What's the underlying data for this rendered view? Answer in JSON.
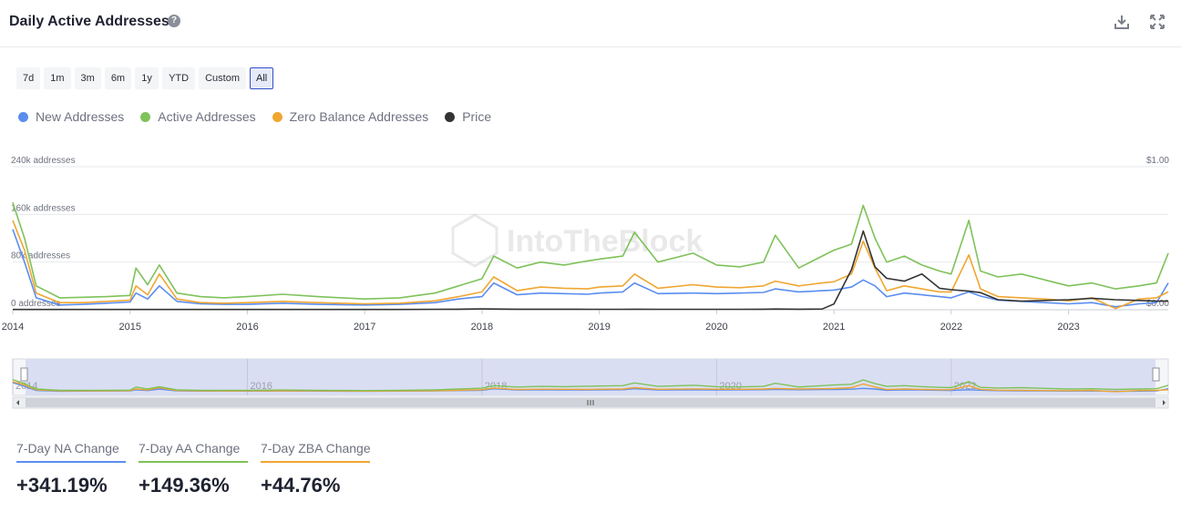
{
  "header": {
    "title": "Daily Active Addresses",
    "help_icon": "question-circle-icon",
    "download_icon": "download-icon",
    "expand_icon": "expand-icon"
  },
  "range_buttons": [
    "7d",
    "1m",
    "3m",
    "6m",
    "1y",
    "YTD",
    "Custom",
    "All"
  ],
  "range_selected": "All",
  "legend": [
    {
      "label": "New Addresses",
      "color": "#5b8def"
    },
    {
      "label": "Active Addresses",
      "color": "#7ec25a"
    },
    {
      "label": "Zero Balance Addresses",
      "color": "#f0a631"
    },
    {
      "label": "Price",
      "color": "#333333"
    }
  ],
  "watermark": "IntoTheBlock",
  "kpis": [
    {
      "label": "7-Day NA Change",
      "value": "+341.19%",
      "color": "#5b8def"
    },
    {
      "label": "7-Day AA Change",
      "value": "+149.36%",
      "color": "#7ec25a"
    },
    {
      "label": "7-Day ZBA Change",
      "value": "+44.76%",
      "color": "#f0a631"
    }
  ],
  "chart_data": {
    "type": "line",
    "x": [
      2014.0,
      2014.1,
      2014.2,
      2014.4,
      2014.6,
      2014.8,
      2015.0,
      2015.05,
      2015.15,
      2015.25,
      2015.4,
      2015.6,
      2015.8,
      2016.0,
      2016.3,
      2016.6,
      2017.0,
      2017.3,
      2017.6,
      2017.8,
      2018.0,
      2018.1,
      2018.3,
      2018.5,
      2018.7,
      2018.9,
      2019.0,
      2019.2,
      2019.3,
      2019.5,
      2019.8,
      2020.0,
      2020.2,
      2020.4,
      2020.5,
      2020.7,
      2020.9,
      2021.0,
      2021.15,
      2021.25,
      2021.35,
      2021.45,
      2021.6,
      2021.75,
      2021.9,
      2022.0,
      2022.15,
      2022.25,
      2022.4,
      2022.6,
      2022.8,
      2023.0,
      2023.2,
      2023.4,
      2023.6,
      2023.75,
      2023.85
    ],
    "series": [
      {
        "name": "New Addresses",
        "color": "#5b8def",
        "axis": "left",
        "values": [
          135000,
          80000,
          20000,
          8000,
          9000,
          11000,
          13000,
          28000,
          18000,
          40000,
          14000,
          10000,
          9000,
          9000,
          11000,
          9000,
          8000,
          9000,
          12000,
          18000,
          22000,
          45000,
          25000,
          28000,
          27000,
          26000,
          28000,
          30000,
          45000,
          27000,
          28000,
          27000,
          28000,
          29000,
          35000,
          30000,
          32000,
          33000,
          38000,
          50000,
          40000,
          22000,
          28000,
          25000,
          22000,
          20000,
          30000,
          23000,
          16000,
          14000,
          12000,
          10000,
          12000,
          5000,
          10000,
          12000,
          45000
        ]
      },
      {
        "name": "Active Addresses",
        "color": "#7ec25a",
        "axis": "left",
        "values": [
          180000,
          120000,
          40000,
          20000,
          21000,
          22000,
          24000,
          70000,
          42000,
          75000,
          28000,
          22000,
          20000,
          22000,
          26000,
          22000,
          18000,
          20000,
          28000,
          40000,
          52000,
          90000,
          70000,
          80000,
          75000,
          82000,
          85000,
          90000,
          130000,
          80000,
          95000,
          75000,
          72000,
          80000,
          125000,
          70000,
          90000,
          100000,
          110000,
          175000,
          120000,
          80000,
          90000,
          75000,
          65000,
          60000,
          150000,
          65000,
          55000,
          60000,
          50000,
          40000,
          45000,
          35000,
          40000,
          45000,
          95000
        ]
      },
      {
        "name": "Zero Balance Addresses",
        "color": "#f0a631",
        "axis": "left",
        "values": [
          150000,
          100000,
          28000,
          12000,
          12000,
          14000,
          16000,
          40000,
          25000,
          60000,
          18000,
          12000,
          11000,
          12000,
          14000,
          12000,
          10000,
          11000,
          15000,
          22000,
          30000,
          55000,
          32000,
          38000,
          36000,
          35000,
          38000,
          40000,
          60000,
          36000,
          42000,
          38000,
          37000,
          40000,
          48000,
          40000,
          45000,
          47000,
          60000,
          115000,
          70000,
          32000,
          40000,
          35000,
          30000,
          30000,
          92000,
          35000,
          22000,
          20000,
          18000,
          15000,
          20000,
          2000,
          18000,
          20000,
          30000
        ]
      },
      {
        "name": "Price",
        "color": "#333333",
        "axis": "right",
        "values": [
          0.002,
          0.002,
          0.002,
          0.002,
          0.002,
          0.002,
          0.002,
          0.002,
          0.002,
          0.002,
          0.002,
          0.002,
          0.002,
          0.002,
          0.002,
          0.002,
          0.002,
          0.002,
          0.003,
          0.004,
          0.006,
          0.005,
          0.004,
          0.004,
          0.004,
          0.003,
          0.003,
          0.003,
          0.004,
          0.003,
          0.003,
          0.003,
          0.003,
          0.004,
          0.005,
          0.004,
          0.005,
          0.04,
          0.28,
          0.55,
          0.3,
          0.22,
          0.2,
          0.25,
          0.15,
          0.14,
          0.13,
          0.12,
          0.07,
          0.06,
          0.065,
          0.07,
          0.08,
          0.07,
          0.065,
          0.06,
          0.06
        ]
      }
    ],
    "ylim_left": [
      0,
      240000
    ],
    "ylim_right": [
      0,
      1.0
    ],
    "xlim": [
      2014.0,
      2023.85
    ],
    "y_ticks_left": [
      {
        "value": 0,
        "label": "0 addresses"
      },
      {
        "value": 80000,
        "label": "80k addresses"
      },
      {
        "value": 160000,
        "label": "160k addresses"
      },
      {
        "value": 240000,
        "label": "240k addresses"
      }
    ],
    "y_ticks_right": [
      {
        "value": 0,
        "label": "$0.00"
      },
      {
        "value": 1.0,
        "label": "$1.00"
      }
    ],
    "x_ticks": [
      {
        "value": 2014,
        "label": "2014"
      },
      {
        "value": 2015,
        "label": "2015"
      },
      {
        "value": 2016,
        "label": "2016"
      },
      {
        "value": 2017,
        "label": "2017"
      },
      {
        "value": 2018,
        "label": "2018"
      },
      {
        "value": 2019,
        "label": "2019"
      },
      {
        "value": 2020,
        "label": "2020"
      },
      {
        "value": 2021,
        "label": "2021"
      },
      {
        "value": 2022,
        "label": "2022"
      },
      {
        "value": 2023,
        "label": "2023"
      }
    ],
    "navigator_ticks": [
      {
        "value": 2014,
        "label": "2014"
      },
      {
        "value": 2016,
        "label": "2016"
      },
      {
        "value": 2018,
        "label": "2018"
      },
      {
        "value": 2020,
        "label": "2020"
      },
      {
        "value": 2022,
        "label": "2022"
      }
    ],
    "grid": true,
    "legend_position": "top-left"
  }
}
